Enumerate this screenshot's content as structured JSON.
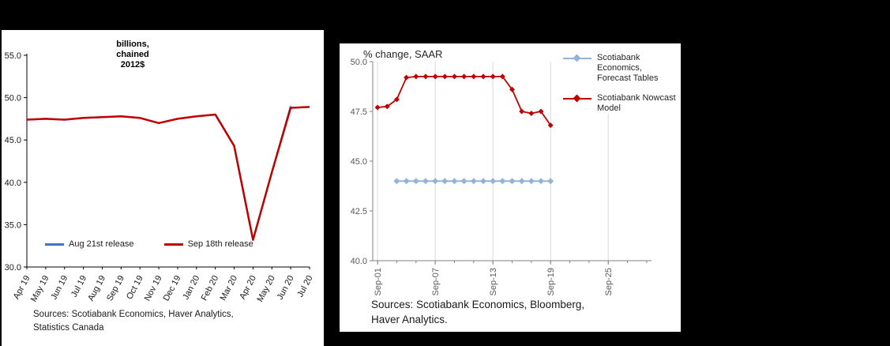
{
  "canvas": {
    "background": "#000000",
    "panel_background": "#FFFFFF"
  },
  "left_chart": {
    "axis_note_lines": [
      "billions,",
      "chained",
      "2012$"
    ],
    "sources_lines": [
      "Sources: Scotiabank Economics, Haver Analytics,",
      "Statistics Canada"
    ]
  },
  "right_chart": {
    "sources_lines": [
      "Sources: Scotiabank Economics, Bloomberg,",
      "Haver Analytics."
    ]
  },
  "chart_data": [
    {
      "type": "line",
      "title": "",
      "ylabel": "billions, chained 2012$",
      "categories": [
        "Apr 19",
        "May 19",
        "Jun 19",
        "Jul 19",
        "Aug 19",
        "Sep 19",
        "Oct 19",
        "Nov 19",
        "Dec 19",
        "Jan 20",
        "Feb 20",
        "Mar 20",
        "Apr 20",
        "May 20",
        "Jun 20",
        "Jul 20"
      ],
      "series": [
        {
          "name": "Aug 21st release",
          "color": "#4472C4",
          "width": 2.2,
          "values": [
            47.4,
            47.5,
            47.4,
            47.6,
            47.7,
            47.8,
            47.6,
            47.0,
            47.5,
            47.8,
            48.0,
            44.3,
            33.2,
            41.2,
            49.0,
            null
          ]
        },
        {
          "name": "Sep 18th release",
          "color": "#C00000",
          "width": 2.5,
          "values": [
            47.4,
            47.5,
            47.4,
            47.6,
            47.7,
            47.8,
            47.6,
            47.0,
            47.5,
            47.8,
            48.0,
            44.3,
            33.2,
            41.2,
            48.8,
            48.9
          ]
        }
      ],
      "ylim": [
        30.0,
        55.0
      ],
      "yticks": [
        30.0,
        35.0,
        40.0,
        45.0,
        50.0,
        55.0
      ],
      "grid": false,
      "legend_position": "inside-bottom",
      "sources": "Sources: Scotiabank Economics, Haver Analytics, Statistics Canada"
    },
    {
      "type": "line",
      "title": "% change, SAAR",
      "xlim": [
        0.5,
        29.5
      ],
      "xaxis": {
        "tick_values": [
          1,
          7,
          13,
          19,
          25
        ],
        "tick_labels": [
          "Sep-01",
          "Sep-07",
          "Sep-13",
          "Sep-19",
          "Sep-25"
        ],
        "minor_tick_step": 2
      },
      "series": [
        {
          "name": "Scotiabank Economics, Forecast Tables",
          "color": "#95B3D7",
          "width": 2,
          "marker": "diamond",
          "marker_size": 4,
          "x_start": 3,
          "values": [
            44.0,
            44.0,
            44.0,
            44.0,
            44.0,
            44.0,
            44.0,
            44.0,
            44.0,
            44.0,
            44.0,
            44.0,
            44.0,
            44.0,
            44.0,
            44.0,
            44.0
          ]
        },
        {
          "name": "Scotiabank Nowcast Model",
          "color": "#C00000",
          "width": 1.8,
          "marker": "diamond",
          "marker_size": 3.5,
          "x_start": 1,
          "values": [
            47.7,
            47.75,
            48.1,
            49.2,
            49.25,
            49.25,
            49.25,
            49.25,
            49.25,
            49.25,
            49.25,
            49.25,
            49.25,
            49.25,
            48.6,
            47.5,
            47.4,
            47.5,
            46.8
          ]
        }
      ],
      "ylim": [
        40.0,
        50.0
      ],
      "yticks": [
        40.0,
        42.5,
        45.0,
        47.5,
        50.0
      ],
      "grid": true,
      "gridline_color": "#D9D9D9",
      "legend_position": "right",
      "sources": "Sources: Scotiabank Economics, Bloomberg, Haver Analytics."
    }
  ]
}
